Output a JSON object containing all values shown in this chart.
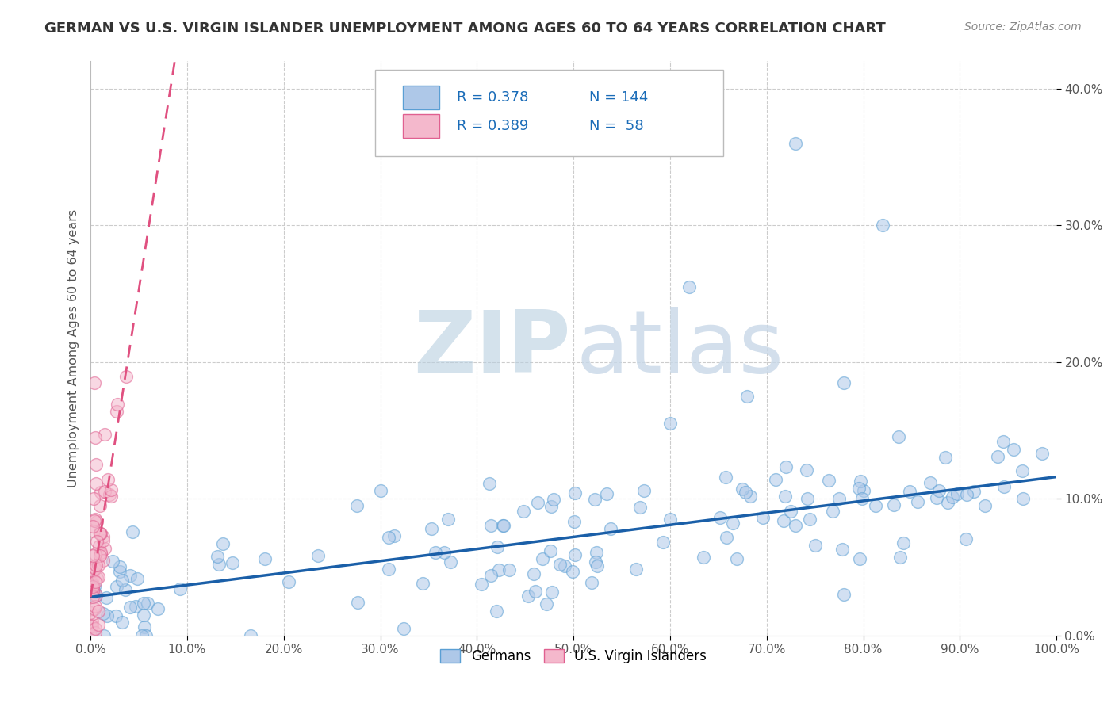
{
  "title": "GERMAN VS U.S. VIRGIN ISLANDER UNEMPLOYMENT AMONG AGES 60 TO 64 YEARS CORRELATION CHART",
  "source": "Source: ZipAtlas.com",
  "ylabel": "Unemployment Among Ages 60 to 64 years",
  "xlim": [
    0,
    1.0
  ],
  "ylim": [
    0,
    0.42
  ],
  "xticks": [
    0.0,
    0.1,
    0.2,
    0.3,
    0.4,
    0.5,
    0.6,
    0.7,
    0.8,
    0.9,
    1.0
  ],
  "yticks": [
    0.0,
    0.1,
    0.2,
    0.3,
    0.4
  ],
  "blue_R": 0.378,
  "blue_N": 144,
  "pink_R": 0.389,
  "pink_N": 58,
  "blue_face": "#aec8e8",
  "blue_edge": "#5a9fd4",
  "pink_face": "#f4b8cc",
  "pink_edge": "#e06090",
  "blue_line_color": "#1a5fa8",
  "pink_line_color": "#e05080",
  "title_color": "#333333",
  "source_color": "#888888",
  "grid_color": "#cccccc",
  "watermark_zip_color": "#b8cfe0",
  "watermark_atlas_color": "#c8d8e8",
  "blue_trend_intercept": 0.028,
  "blue_trend_slope": 0.088,
  "pink_trend_intercept": 0.028,
  "pink_trend_slope": 4.5
}
